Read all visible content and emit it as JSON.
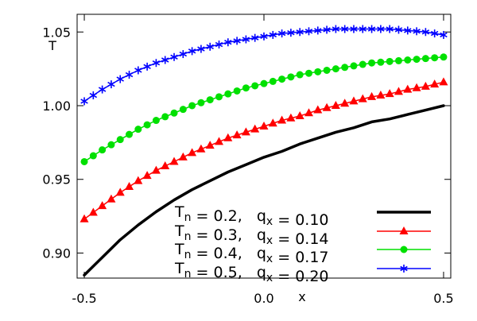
{
  "chart_data": {
    "type": "line",
    "title": "",
    "xlabel": "x",
    "ylabel": "T",
    "xlim": [
      -0.52,
      0.52
    ],
    "ylim": [
      0.883,
      1.062
    ],
    "grid": false,
    "legend_position": "bottom-right",
    "xticks": [
      {
        "value": -0.5,
        "label": "-0.5"
      },
      {
        "value": 0.0,
        "label": "0.0"
      },
      {
        "value": 0.5,
        "label": "0.5"
      }
    ],
    "yticks": [
      {
        "value": 0.9,
        "label": "0.90"
      },
      {
        "value": 0.95,
        "label": "0.95"
      },
      {
        "value": 1.0,
        "label": "1.00"
      },
      {
        "value": 1.05,
        "label": "1.05"
      }
    ],
    "series": [
      {
        "label_main": "T",
        "label_sub": "n",
        "label_rest": " = 0.2,   q",
        "label_sub2": "x",
        "label_end": " = 0.10",
        "color": "#000000",
        "marker": "none",
        "x": [
          -0.5,
          -0.45,
          -0.4,
          -0.35,
          -0.3,
          -0.25,
          -0.2,
          -0.15,
          -0.1,
          -0.05,
          0.0,
          0.05,
          0.1,
          0.15,
          0.2,
          0.25,
          0.3,
          0.35,
          0.4,
          0.45,
          0.5
        ],
        "y": [
          0.885,
          0.897,
          0.909,
          0.919,
          0.928,
          0.936,
          0.943,
          0.949,
          0.955,
          0.96,
          0.965,
          0.969,
          0.974,
          0.978,
          0.982,
          0.985,
          0.989,
          0.991,
          0.994,
          0.997,
          1.0
        ]
      },
      {
        "label_main": "T",
        "label_sub": "n",
        "label_rest": " = 0.3,   q",
        "label_sub2": "x",
        "label_end": " = 0.14",
        "color": "#ff0000",
        "marker": "triangle",
        "x": [
          -0.5,
          -0.45,
          -0.4,
          -0.35,
          -0.3,
          -0.25,
          -0.2,
          -0.15,
          -0.1,
          -0.05,
          0.0,
          0.05,
          0.1,
          0.15,
          0.2,
          0.25,
          0.3,
          0.35,
          0.4,
          0.45,
          0.5
        ],
        "y": [
          0.923,
          0.932,
          0.941,
          0.949,
          0.956,
          0.962,
          0.968,
          0.973,
          0.978,
          0.982,
          0.986,
          0.99,
          0.993,
          0.997,
          1.0,
          1.003,
          1.006,
          1.008,
          1.011,
          1.013,
          1.016
        ]
      },
      {
        "label_main": "T",
        "label_sub": "n",
        "label_rest": " = 0.4,   q",
        "label_sub2": "x",
        "label_end": " = 0.17",
        "color": "#00e000",
        "marker": "circle",
        "x": [
          -0.5,
          -0.45,
          -0.4,
          -0.35,
          -0.3,
          -0.25,
          -0.2,
          -0.15,
          -0.1,
          -0.05,
          0.0,
          0.05,
          0.1,
          0.15,
          0.2,
          0.25,
          0.3,
          0.35,
          0.4,
          0.45,
          0.5
        ],
        "y": [
          0.962,
          0.97,
          0.977,
          0.984,
          0.99,
          0.995,
          1.0,
          1.004,
          1.008,
          1.012,
          1.015,
          1.018,
          1.021,
          1.023,
          1.025,
          1.027,
          1.029,
          1.03,
          1.031,
          1.032,
          1.033
        ]
      },
      {
        "label_main": "T",
        "label_sub": "n",
        "label_rest": " = 0.5,   q",
        "label_sub2": "x",
        "label_end": " = 0.20",
        "color": "#0000ff",
        "marker": "asterisk",
        "x": [
          -0.5,
          -0.45,
          -0.4,
          -0.35,
          -0.3,
          -0.25,
          -0.2,
          -0.15,
          -0.1,
          -0.05,
          0.0,
          0.05,
          0.1,
          0.15,
          0.2,
          0.25,
          0.3,
          0.35,
          0.4,
          0.45,
          0.5
        ],
        "y": [
          1.003,
          1.011,
          1.018,
          1.024,
          1.029,
          1.033,
          1.037,
          1.04,
          1.043,
          1.045,
          1.047,
          1.049,
          1.05,
          1.051,
          1.052,
          1.052,
          1.052,
          1.052,
          1.051,
          1.05,
          1.048
        ]
      }
    ]
  }
}
